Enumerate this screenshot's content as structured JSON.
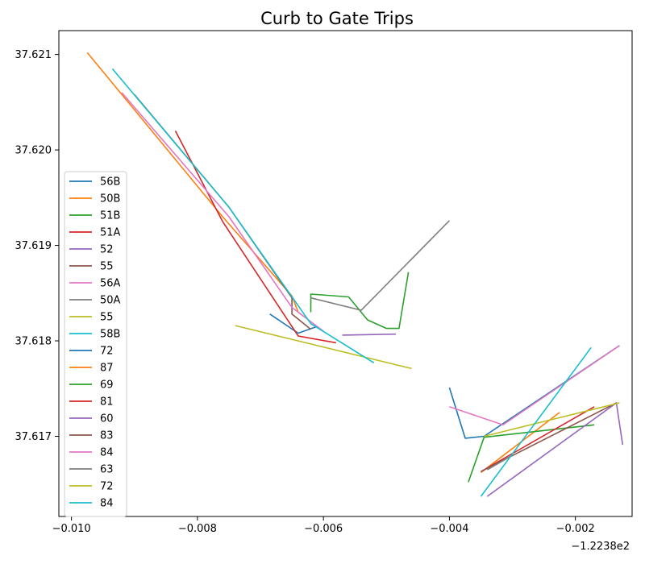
{
  "chart_data": {
    "type": "line",
    "title": "Curb to Gate Trips",
    "xlabel": "",
    "ylabel": "",
    "x_offset_label": "−1.2238e2",
    "xlim": [
      -0.0102,
      -0.0011
    ],
    "ylim": [
      37.61616,
      37.62125
    ],
    "x_ticks": [
      {
        "value": -0.01,
        "label": "−0.010"
      },
      {
        "value": -0.008,
        "label": "−0.008"
      },
      {
        "value": -0.006,
        "label": "−0.006"
      },
      {
        "value": -0.004,
        "label": "−0.004"
      },
      {
        "value": -0.002,
        "label": "−0.002"
      }
    ],
    "y_ticks": [
      {
        "value": 37.617,
        "label": "37.617"
      },
      {
        "value": 37.618,
        "label": "37.618"
      },
      {
        "value": 37.619,
        "label": "37.619"
      },
      {
        "value": 37.62,
        "label": "37.620"
      },
      {
        "value": 37.621,
        "label": "37.621"
      }
    ],
    "grid": false,
    "legend_position": "lower-left",
    "series": [
      {
        "name": "56B",
        "color": "#1f77b4",
        "x": [
          -0.00685,
          -0.0064,
          -0.0061
        ],
        "y": [
          37.61828,
          37.61808,
          37.61815
        ]
      },
      {
        "name": "50B",
        "color": "#ff7f0e",
        "x": [
          -0.00975,
          -0.0076,
          -0.0065,
          -0.0064,
          -0.0063
        ],
        "y": [
          37.62102,
          37.6193,
          37.61847,
          37.6183,
          37.61825
        ]
      },
      {
        "name": "51B",
        "color": "#2ca02c",
        "x": [
          -0.0062,
          -0.0062,
          -0.0056,
          -0.0053,
          -0.005,
          -0.0048,
          -0.00465
        ],
        "y": [
          37.6183,
          37.61849,
          37.61846,
          37.61822,
          37.61813,
          37.61813,
          37.61872
        ]
      },
      {
        "name": "51A",
        "color": "#d62728",
        "x": [
          -0.00835,
          -0.0076,
          -0.0064,
          -0.0058
        ],
        "y": [
          37.6202,
          37.61925,
          37.61805,
          37.61798
        ]
      },
      {
        "name": "52",
        "color": "#9467bd",
        "x": [
          -0.0057,
          -0.00485
        ],
        "y": [
          37.61806,
          37.61807
        ]
      },
      {
        "name": "55",
        "color": "#8c564b",
        "x": [
          -0.009,
          -0.0075,
          -0.0065,
          -0.0065,
          -0.0062
        ],
        "y": [
          37.62058,
          37.6194,
          37.61845,
          37.61828,
          37.61812
        ]
      },
      {
        "name": "56A",
        "color": "#e377c2",
        "x": [
          -0.0092,
          -0.0075,
          -0.0065,
          -0.006
        ],
        "y": [
          37.6206,
          37.6193,
          37.61835,
          37.6181
        ]
      },
      {
        "name": "50A",
        "color": "#7f7f7f",
        "x": [
          -0.0062,
          -0.0054,
          -0.004,
          -0.004
        ],
        "y": [
          37.61845,
          37.61832,
          37.61926,
          37.61926
        ]
      },
      {
        "name": "55",
        "color": "#bcbd22",
        "x": [
          -0.0074,
          -0.0046
        ],
        "y": [
          37.61816,
          37.61771
        ]
      },
      {
        "name": "58B",
        "color": "#17becf",
        "x": [
          -0.00935,
          -0.0075,
          -0.0062,
          -0.0052
        ],
        "y": [
          37.62085,
          37.6194,
          37.61818,
          37.61777
        ]
      },
      {
        "name": "72",
        "color": "#1f77b4",
        "x": [
          -0.004,
          -0.00375,
          -0.00345,
          -0.0013
        ],
        "y": [
          37.61751,
          37.61698,
          37.617,
          37.61795
        ]
      },
      {
        "name": "87",
        "color": "#ff7f0e",
        "x": [
          -0.0035,
          -0.00225
        ],
        "y": [
          37.61662,
          37.61725
        ]
      },
      {
        "name": "69",
        "color": "#2ca02c",
        "x": [
          -0.0037,
          -0.00345,
          -0.0017
        ],
        "y": [
          37.61652,
          37.61699,
          37.61712
        ]
      },
      {
        "name": "81",
        "color": "#d62728",
        "x": [
          -0.0035,
          -0.0017
        ],
        "y": [
          37.61663,
          37.61731
        ]
      },
      {
        "name": "60",
        "color": "#9467bd",
        "x": [
          -0.0034,
          -0.00135,
          -0.00125
        ],
        "y": [
          37.61637,
          37.61735,
          37.61691
        ]
      },
      {
        "name": "83",
        "color": "#8c564b",
        "x": [
          -0.0035,
          -0.00135
        ],
        "y": [
          37.61663,
          37.61735
        ]
      },
      {
        "name": "84",
        "color": "#e377c2",
        "x": [
          -0.004,
          -0.00315,
          -0.0013
        ],
        "y": [
          37.61731,
          37.61712,
          37.61795
        ]
      },
      {
        "name": "63",
        "color": "#7f7f7f",
        "x": [
          -0.0034,
          -0.003
        ],
        "y": [
          37.61665,
          37.6168
        ]
      },
      {
        "name": "72",
        "color": "#bcbd22",
        "x": [
          -0.00345,
          -0.0013
        ],
        "y": [
          37.617,
          37.61735
        ]
      },
      {
        "name": "84",
        "color": "#17becf",
        "x": [
          -0.0035,
          -0.00175
        ],
        "y": [
          37.61637,
          37.61793
        ]
      }
    ]
  }
}
